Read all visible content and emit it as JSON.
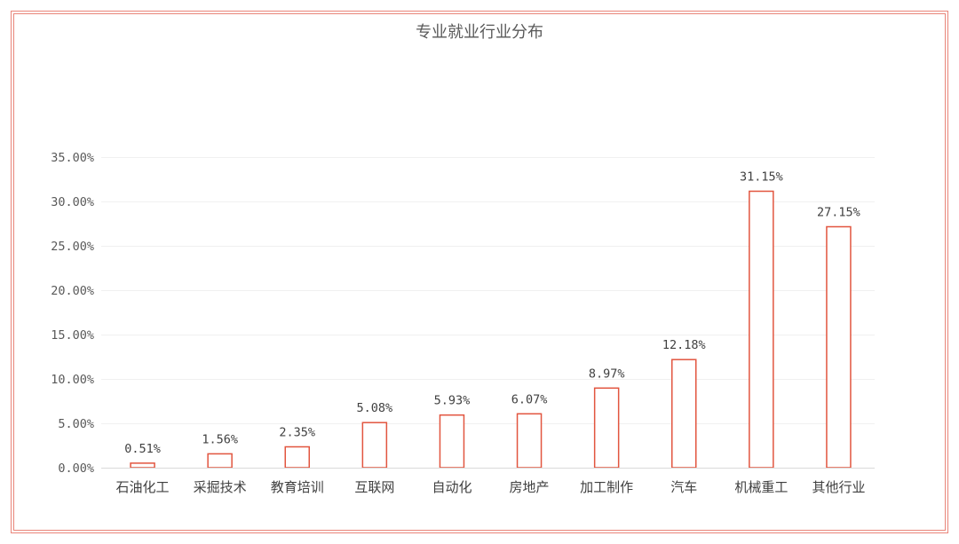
{
  "chart_data": {
    "type": "bar",
    "title": "专业就业行业分布",
    "categories": [
      "石油化工",
      "采掘技术",
      "教育培训",
      "互联网",
      "自动化",
      "房地产",
      "加工制作",
      "汽车",
      "机械重工",
      "其他行业"
    ],
    "values": [
      0.51,
      1.56,
      2.35,
      5.08,
      5.93,
      6.07,
      8.97,
      12.18,
      31.15,
      27.15
    ],
    "data_labels": [
      "0.51%",
      "1.56%",
      "2.35%",
      "5.08%",
      "5.93%",
      "6.07%",
      "8.97%",
      "12.18%",
      "31.15%",
      "27.15%"
    ],
    "y_ticks": [
      "0.00%",
      "5.00%",
      "10.00%",
      "15.00%",
      "20.00%",
      "25.00%",
      "30.00%",
      "35.00%"
    ],
    "ylim": [
      0,
      35
    ],
    "grid": true,
    "legend": "none",
    "bar_fill": "#ffffff",
    "bar_stroke": "#e2553f",
    "frame_color": "#e9857a"
  }
}
